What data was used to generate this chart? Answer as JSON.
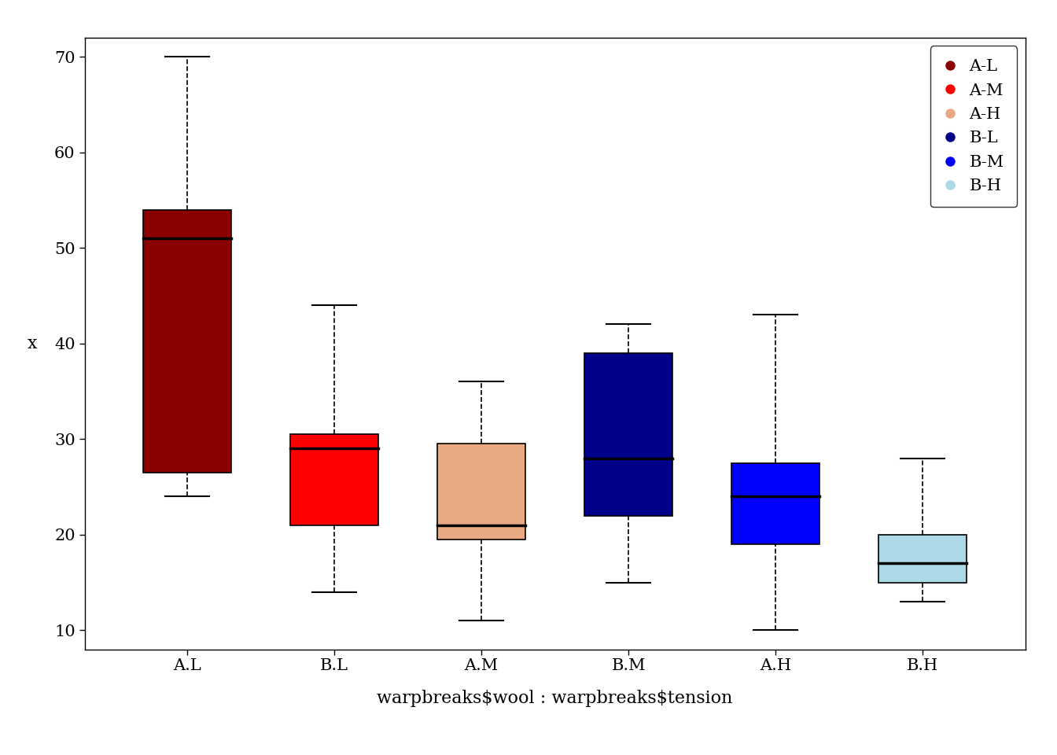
{
  "groups": [
    "A.L",
    "B.L",
    "A.M",
    "B.M",
    "A.H",
    "B.H"
  ],
  "legend_order": [
    "A-L",
    "A-M",
    "A-H",
    "B-L",
    "B-M",
    "B-H"
  ],
  "colors": {
    "A.L": "#8B0000",
    "B.L": "#FF0000",
    "A.M": "#E8A882",
    "B.M": "#00008B",
    "A.H": "#0000FF",
    "B.H": "#ADD8E6"
  },
  "legend_colors": {
    "A-L": "#8B0000",
    "A-M": "#FF0000",
    "A-H": "#E8A882",
    "B-L": "#00008B",
    "B-M": "#0000FF",
    "B-H": "#ADD8E6"
  },
  "box_data": {
    "A.L": {
      "whislo": 24,
      "q1": 26.5,
      "med": 51,
      "q3": 54,
      "whishi": 70
    },
    "B.L": {
      "whislo": 14,
      "q1": 21,
      "med": 29,
      "q3": 30.5,
      "whishi": 44
    },
    "A.M": {
      "whislo": 11,
      "q1": 19.5,
      "med": 21,
      "q3": 29.5,
      "whishi": 36
    },
    "B.M": {
      "whislo": 15,
      "q1": 22,
      "med": 28,
      "q3": 39,
      "whishi": 42
    },
    "A.H": {
      "whislo": 10,
      "q1": 19,
      "med": 24,
      "q3": 27.5,
      "whishi": 43
    },
    "B.H": {
      "whislo": 13,
      "q1": 15,
      "med": 17,
      "q3": 20,
      "whishi": 28
    }
  },
  "ylabel": "x",
  "xlabel": "warpbreaks$wool : warpbreaks$tension",
  "ylim": [
    8,
    72
  ],
  "yticks": [
    10,
    20,
    30,
    40,
    50,
    60,
    70
  ],
  "background_color": "#FFFFFF",
  "axis_fontsize": 16,
  "tick_fontsize": 15,
  "legend_fontsize": 15
}
